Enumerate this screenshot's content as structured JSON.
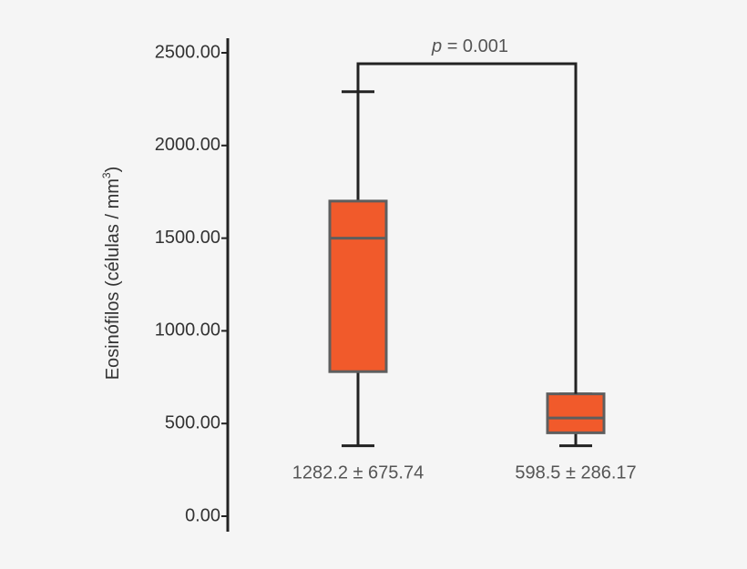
{
  "chart_data": {
    "type": "box",
    "ylabel": "Eosinófilos (células / mm",
    "ylabel_superscript": "3",
    "ylabel_suffix": ")",
    "ylim": [
      0,
      2500
    ],
    "yticks": [
      {
        "value": 0,
        "label": "0.00"
      },
      {
        "value": 500,
        "label": "500.00"
      },
      {
        "value": 1000,
        "label": "1000.00"
      },
      {
        "value": 1500,
        "label": "1500.00"
      },
      {
        "value": 2000,
        "label": "2000.00"
      },
      {
        "value": 2500,
        "label": "2500.00"
      }
    ],
    "color": "#f15a2b",
    "edge_color": "#5e5e5e",
    "boxes": [
      {
        "low": 380,
        "q1": 780,
        "median": 1500,
        "q3": 1700,
        "high": 2290,
        "label": "1282.2 ± 675.74"
      },
      {
        "low": 380,
        "q1": 450,
        "median": 530,
        "q3": 660,
        "high": 660,
        "label": "598.5 ± 286.17"
      }
    ],
    "annotation_symbol": "p",
    "annotation_text": "= 0.001"
  }
}
